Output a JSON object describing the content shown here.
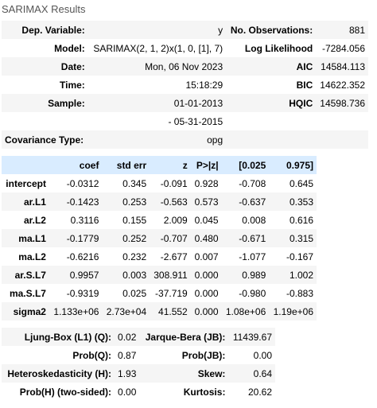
{
  "caption": "SARIMAX Results",
  "summary": [
    {
      "l1": "Dep. Variable:",
      "v1": "y",
      "l2": "No. Observations:",
      "v2": "881"
    },
    {
      "l1": "Model:",
      "v1": "SARIMAX(2, 1, 2)x(1, 0, [1], 7)",
      "l2": "Log Likelihood",
      "v2": "-7284.056"
    },
    {
      "l1": "Date:",
      "v1": "Mon, 06 Nov 2023",
      "l2": "AIC",
      "v2": "14584.113"
    },
    {
      "l1": "Time:",
      "v1": "15:18:29",
      "l2": "BIC",
      "v2": "14622.352"
    },
    {
      "l1": "Sample:",
      "v1": "01-01-2013",
      "l2": "HQIC",
      "v2": "14598.736"
    },
    {
      "l1": "",
      "v1": "- 05-31-2015",
      "l2": "",
      "v2": ""
    },
    {
      "l1": "Covariance Type:",
      "v1": "opg",
      "l2": "",
      "v2": ""
    }
  ],
  "coef_headers": [
    "",
    "coef",
    "std err",
    "z",
    "P>|z|",
    "[0.025",
    "0.975]"
  ],
  "coefs": [
    [
      "intercept",
      "-0.0312",
      "0.345",
      "-0.091",
      "0.928",
      "-0.708",
      "0.645"
    ],
    [
      "ar.L1",
      "-0.1423",
      "0.253",
      "-0.563",
      "0.573",
      "-0.637",
      "0.353"
    ],
    [
      "ar.L2",
      "0.3116",
      "0.155",
      "2.009",
      "0.045",
      "0.008",
      "0.616"
    ],
    [
      "ma.L1",
      "-0.1779",
      "0.252",
      "-0.707",
      "0.480",
      "-0.671",
      "0.315"
    ],
    [
      "ma.L2",
      "-0.6216",
      "0.232",
      "-2.677",
      "0.007",
      "-1.077",
      "-0.167"
    ],
    [
      "ar.S.L7",
      "0.9957",
      "0.003",
      "308.911",
      "0.000",
      "0.989",
      "1.002"
    ],
    [
      "ma.S.L7",
      "-0.9319",
      "0.025",
      "-37.719",
      "0.000",
      "-0.980",
      "-0.883"
    ],
    [
      "sigma2",
      "1.133e+06",
      "2.73e+04",
      "41.552",
      "0.000",
      "1.08e+06",
      "1.19e+06"
    ]
  ],
  "diagnostics": [
    {
      "l1": "Ljung-Box (L1) (Q):",
      "v1": "0.02",
      "l2": "Jarque-Bera (JB):",
      "v2": "11439.67"
    },
    {
      "l1": "Prob(Q):",
      "v1": "0.87",
      "l2": "Prob(JB):",
      "v2": "0.00"
    },
    {
      "l1": "Heteroskedasticity (H):",
      "v1": "1.93",
      "l2": "Skew:",
      "v2": "0.64"
    },
    {
      "l1": "Prob(H) (two-sided):",
      "v1": "0.00",
      "l2": "Kurtosis:",
      "v2": "20.62"
    }
  ]
}
